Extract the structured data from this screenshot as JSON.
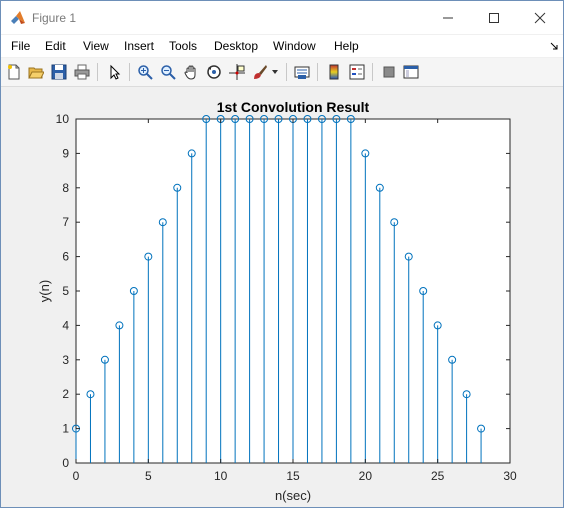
{
  "window": {
    "title": "Figure 1",
    "controls": {
      "minimize": "minimize",
      "maximize": "maximize",
      "close": "close"
    }
  },
  "menu": [
    "File",
    "Edit",
    "View",
    "Insert",
    "Tools",
    "Desktop",
    "Window",
    "Help"
  ],
  "toolbar": {
    "icons": [
      "new-figure-icon",
      "open-file-icon",
      "save-icon",
      "print-icon",
      "pointer-icon",
      "zoom-in-icon",
      "zoom-out-icon",
      "pan-icon",
      "rotate-3d-icon",
      "data-cursor-icon",
      "brush-icon",
      "dropdown-arrow-icon",
      "link-plot-icon",
      "colorbar-icon",
      "legend-icon",
      "hide-plot-tools-icon",
      "show-plot-tools-icon"
    ]
  },
  "chart_data": {
    "type": "stem",
    "title": "1st Convolution Result",
    "xlabel": "n(sec)",
    "ylabel": "y(n)",
    "xlim": [
      0,
      30
    ],
    "ylim": [
      0,
      10
    ],
    "xticks": [
      "0",
      "5",
      "10",
      "15",
      "20",
      "25",
      "30"
    ],
    "yticks": [
      "0",
      "1",
      "2",
      "3",
      "4",
      "5",
      "6",
      "7",
      "8",
      "9",
      "10"
    ],
    "x": [
      0,
      1,
      2,
      3,
      4,
      5,
      6,
      7,
      8,
      9,
      10,
      11,
      12,
      13,
      14,
      15,
      16,
      17,
      18,
      19,
      20,
      21,
      22,
      23,
      24,
      25,
      26,
      27,
      28
    ],
    "y": [
      1,
      2,
      3,
      4,
      5,
      6,
      7,
      8,
      9,
      10,
      10,
      10,
      10,
      10,
      10,
      10,
      10,
      10,
      10,
      10,
      9,
      8,
      7,
      6,
      5,
      4,
      3,
      2,
      1
    ],
    "color": "#0072bd",
    "grid": false
  }
}
